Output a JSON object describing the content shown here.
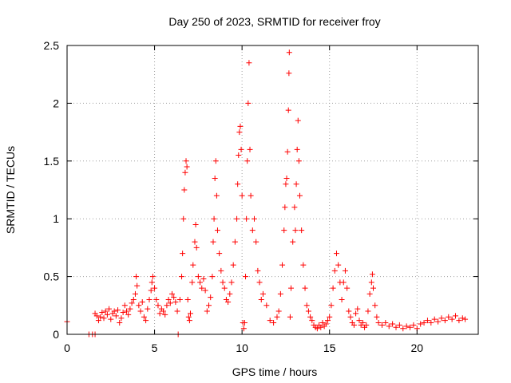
{
  "chart_data": {
    "type": "scatter",
    "title": "Day 250 of 2023, SRMTID for receiver froy",
    "xlabel": "GPS time / hours",
    "ylabel": "SRMTID / TECUs",
    "xlim": [
      0,
      23.5
    ],
    "ylim": [
      0,
      2.5
    ],
    "xticks": [
      0,
      5,
      10,
      15,
      20
    ],
    "xtick_labels": [
      "0",
      "5",
      "10",
      "15",
      "20"
    ],
    "yticks": [
      0,
      0.5,
      1,
      1.5,
      2,
      2.5
    ],
    "ytick_labels": [
      "0",
      "0.5",
      "1",
      "1.5",
      "2",
      "2.5"
    ],
    "grid": true,
    "marker": "+",
    "color": "#ff0000",
    "series": [
      {
        "name": "SRMTID",
        "points": [
          [
            0.0,
            0.11
          ],
          [
            1.25,
            0.0
          ],
          [
            1.45,
            0.0
          ],
          [
            1.6,
            0.0
          ],
          [
            1.6,
            0.18
          ],
          [
            1.7,
            0.16
          ],
          [
            1.8,
            0.12
          ],
          [
            1.9,
            0.15
          ],
          [
            2.0,
            0.19
          ],
          [
            2.1,
            0.14
          ],
          [
            2.2,
            0.2
          ],
          [
            2.3,
            0.17
          ],
          [
            2.4,
            0.22
          ],
          [
            2.5,
            0.13
          ],
          [
            2.6,
            0.18
          ],
          [
            2.7,
            0.2
          ],
          [
            2.8,
            0.16
          ],
          [
            2.9,
            0.21
          ],
          [
            3.0,
            0.1
          ],
          [
            3.1,
            0.14
          ],
          [
            3.2,
            0.19
          ],
          [
            3.3,
            0.25
          ],
          [
            3.4,
            0.2
          ],
          [
            3.5,
            0.17
          ],
          [
            3.6,
            0.22
          ],
          [
            3.7,
            0.27
          ],
          [
            3.8,
            0.3
          ],
          [
            3.9,
            0.35
          ],
          [
            3.95,
            0.5
          ],
          [
            4.0,
            0.42
          ],
          [
            4.1,
            0.25
          ],
          [
            4.2,
            0.2
          ],
          [
            4.3,
            0.28
          ],
          [
            4.4,
            0.15
          ],
          [
            4.5,
            0.12
          ],
          [
            4.6,
            0.22
          ],
          [
            4.7,
            0.3
          ],
          [
            4.8,
            0.38
          ],
          [
            4.85,
            0.45
          ],
          [
            4.9,
            0.5
          ],
          [
            5.0,
            0.4
          ],
          [
            5.1,
            0.3
          ],
          [
            5.2,
            0.25
          ],
          [
            5.3,
            0.18
          ],
          [
            5.4,
            0.22
          ],
          [
            5.5,
            0.2
          ],
          [
            5.6,
            0.17
          ],
          [
            5.7,
            0.25
          ],
          [
            5.8,
            0.3
          ],
          [
            5.9,
            0.27
          ],
          [
            6.0,
            0.35
          ],
          [
            6.1,
            0.32
          ],
          [
            6.2,
            0.28
          ],
          [
            6.3,
            0.2
          ],
          [
            6.35,
            0.0
          ],
          [
            6.45,
            0.3
          ],
          [
            6.55,
            0.5
          ],
          [
            6.6,
            0.7
          ],
          [
            6.65,
            1.0
          ],
          [
            6.7,
            1.25
          ],
          [
            6.75,
            1.4
          ],
          [
            6.8,
            1.5
          ],
          [
            6.85,
            1.45
          ],
          [
            6.9,
            0.3
          ],
          [
            6.95,
            0.15
          ],
          [
            7.0,
            0.12
          ],
          [
            7.05,
            0.18
          ],
          [
            7.15,
            0.45
          ],
          [
            7.2,
            0.6
          ],
          [
            7.3,
            0.8
          ],
          [
            7.35,
            0.95
          ],
          [
            7.4,
            0.75
          ],
          [
            7.5,
            0.5
          ],
          [
            7.6,
            0.45
          ],
          [
            7.7,
            0.4
          ],
          [
            7.8,
            0.48
          ],
          [
            7.9,
            0.38
          ],
          [
            8.0,
            0.2
          ],
          [
            8.1,
            0.25
          ],
          [
            8.2,
            0.32
          ],
          [
            8.3,
            0.5
          ],
          [
            8.35,
            0.8
          ],
          [
            8.4,
            1.0
          ],
          [
            8.45,
            1.35
          ],
          [
            8.5,
            1.5
          ],
          [
            8.55,
            1.2
          ],
          [
            8.6,
            0.9
          ],
          [
            8.7,
            0.7
          ],
          [
            8.8,
            0.55
          ],
          [
            8.9,
            0.45
          ],
          [
            9.0,
            0.4
          ],
          [
            9.1,
            0.3
          ],
          [
            9.2,
            0.28
          ],
          [
            9.3,
            0.35
          ],
          [
            9.4,
            0.45
          ],
          [
            9.5,
            0.6
          ],
          [
            9.6,
            0.8
          ],
          [
            9.7,
            1.0
          ],
          [
            9.75,
            1.3
          ],
          [
            9.8,
            1.55
          ],
          [
            9.85,
            1.75
          ],
          [
            9.9,
            1.8
          ],
          [
            9.95,
            1.6
          ],
          [
            10.0,
            1.2
          ],
          [
            10.05,
            0.1
          ],
          [
            10.1,
            0.05
          ],
          [
            10.15,
            0.1
          ],
          [
            10.2,
            0.5
          ],
          [
            10.25,
            1.0
          ],
          [
            10.3,
            1.5
          ],
          [
            10.35,
            2.0
          ],
          [
            10.4,
            2.35
          ],
          [
            10.45,
            1.6
          ],
          [
            10.5,
            1.2
          ],
          [
            10.6,
            0.9
          ],
          [
            10.7,
            1.0
          ],
          [
            10.8,
            0.8
          ],
          [
            10.9,
            0.55
          ],
          [
            11.0,
            0.45
          ],
          [
            11.1,
            0.3
          ],
          [
            11.2,
            0.35
          ],
          [
            11.4,
            0.25
          ],
          [
            11.6,
            0.12
          ],
          [
            11.8,
            0.1
          ],
          [
            12.0,
            0.15
          ],
          [
            12.1,
            0.2
          ],
          [
            12.2,
            0.35
          ],
          [
            12.3,
            0.6
          ],
          [
            12.4,
            0.9
          ],
          [
            12.45,
            1.1
          ],
          [
            12.5,
            1.3
          ],
          [
            12.55,
            1.35
          ],
          [
            12.6,
            1.58
          ],
          [
            12.65,
            1.94
          ],
          [
            12.68,
            2.26
          ],
          [
            12.7,
            2.44
          ],
          [
            12.75,
            0.15
          ],
          [
            12.8,
            0.4
          ],
          [
            12.9,
            0.8
          ],
          [
            13.0,
            1.1
          ],
          [
            13.05,
            0.9
          ],
          [
            13.1,
            1.3
          ],
          [
            13.15,
            1.6
          ],
          [
            13.2,
            1.85
          ],
          [
            13.25,
            1.5
          ],
          [
            13.3,
            1.2
          ],
          [
            13.4,
            0.9
          ],
          [
            13.5,
            0.6
          ],
          [
            13.6,
            0.4
          ],
          [
            13.7,
            0.25
          ],
          [
            13.8,
            0.2
          ],
          [
            13.9,
            0.15
          ],
          [
            14.0,
            0.12
          ],
          [
            14.1,
            0.08
          ],
          [
            14.2,
            0.06
          ],
          [
            14.3,
            0.05
          ],
          [
            14.4,
            0.08
          ],
          [
            14.5,
            0.06
          ],
          [
            14.6,
            0.1
          ],
          [
            14.7,
            0.07
          ],
          [
            14.8,
            0.09
          ],
          [
            14.9,
            0.12
          ],
          [
            15.0,
            0.15
          ],
          [
            15.1,
            0.25
          ],
          [
            15.2,
            0.4
          ],
          [
            15.3,
            0.55
          ],
          [
            15.4,
            0.7
          ],
          [
            15.5,
            0.6
          ],
          [
            15.6,
            0.45
          ],
          [
            15.7,
            0.3
          ],
          [
            15.8,
            0.45
          ],
          [
            15.9,
            0.55
          ],
          [
            16.0,
            0.4
          ],
          [
            16.1,
            0.2
          ],
          [
            16.2,
            0.15
          ],
          [
            16.3,
            0.1
          ],
          [
            16.4,
            0.08
          ],
          [
            16.5,
            0.18
          ],
          [
            16.6,
            0.22
          ],
          [
            16.7,
            0.12
          ],
          [
            16.8,
            0.08
          ],
          [
            16.9,
            0.1
          ],
          [
            17.0,
            0.06
          ],
          [
            17.1,
            0.08
          ],
          [
            17.2,
            0.2
          ],
          [
            17.3,
            0.35
          ],
          [
            17.4,
            0.45
          ],
          [
            17.45,
            0.52
          ],
          [
            17.5,
            0.4
          ],
          [
            17.6,
            0.25
          ],
          [
            17.7,
            0.15
          ],
          [
            17.8,
            0.1
          ],
          [
            18.0,
            0.08
          ],
          [
            18.2,
            0.1
          ],
          [
            18.4,
            0.07
          ],
          [
            18.6,
            0.09
          ],
          [
            18.8,
            0.06
          ],
          [
            19.0,
            0.08
          ],
          [
            19.2,
            0.05
          ],
          [
            19.4,
            0.07
          ],
          [
            19.6,
            0.06
          ],
          [
            19.8,
            0.08
          ],
          [
            20.0,
            0.05
          ],
          [
            20.2,
            0.09
          ],
          [
            20.4,
            0.1
          ],
          [
            20.6,
            0.12
          ],
          [
            20.8,
            0.1
          ],
          [
            21.0,
            0.13
          ],
          [
            21.2,
            0.11
          ],
          [
            21.4,
            0.14
          ],
          [
            21.6,
            0.12
          ],
          [
            21.8,
            0.15
          ],
          [
            22.0,
            0.13
          ],
          [
            22.2,
            0.16
          ],
          [
            22.4,
            0.12
          ],
          [
            22.6,
            0.14
          ],
          [
            22.75,
            0.13
          ]
        ]
      }
    ]
  }
}
